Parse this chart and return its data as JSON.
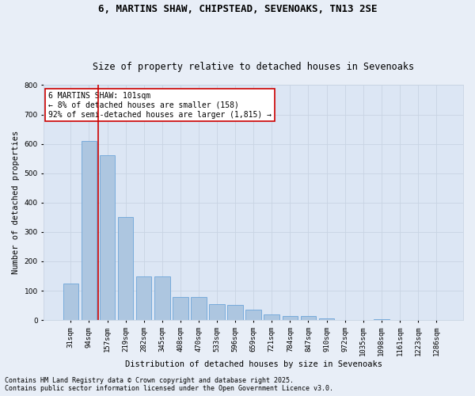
{
  "title1": "6, MARTINS SHAW, CHIPSTEAD, SEVENOAKS, TN13 2SE",
  "title2": "Size of property relative to detached houses in Sevenoaks",
  "xlabel": "Distribution of detached houses by size in Sevenoaks",
  "ylabel": "Number of detached properties",
  "categories": [
    "31sqm",
    "94sqm",
    "157sqm",
    "219sqm",
    "282sqm",
    "345sqm",
    "408sqm",
    "470sqm",
    "533sqm",
    "596sqm",
    "659sqm",
    "721sqm",
    "784sqm",
    "847sqm",
    "910sqm",
    "972sqm",
    "1035sqm",
    "1098sqm",
    "1161sqm",
    "1223sqm",
    "1286sqm"
  ],
  "values": [
    125,
    610,
    560,
    350,
    150,
    148,
    80,
    78,
    55,
    53,
    35,
    20,
    15,
    14,
    5,
    0,
    0,
    4,
    0,
    0,
    0
  ],
  "bar_color": "#adc6e0",
  "bar_edge_color": "#5b9bd5",
  "vline_x": 1.5,
  "vline_color": "#cc0000",
  "annotation_text": "6 MARTINS SHAW: 101sqm\n← 8% of detached houses are smaller (158)\n92% of semi-detached houses are larger (1,815) →",
  "annotation_box_color": "#ffffff",
  "annotation_border_color": "#cc0000",
  "grid_color": "#c8d4e3",
  "bg_color": "#e8eef7",
  "plot_bg_color": "#dce6f4",
  "footer1": "Contains HM Land Registry data © Crown copyright and database right 2025.",
  "footer2": "Contains public sector information licensed under the Open Government Licence v3.0.",
  "ylim": [
    0,
    800
  ],
  "yticks": [
    0,
    100,
    200,
    300,
    400,
    500,
    600,
    700,
    800
  ],
  "title1_fontsize": 9,
  "title2_fontsize": 8.5,
  "xlabel_fontsize": 7.5,
  "ylabel_fontsize": 7.5,
  "tick_fontsize": 6.5,
  "annotation_fontsize": 7,
  "footer_fontsize": 6
}
